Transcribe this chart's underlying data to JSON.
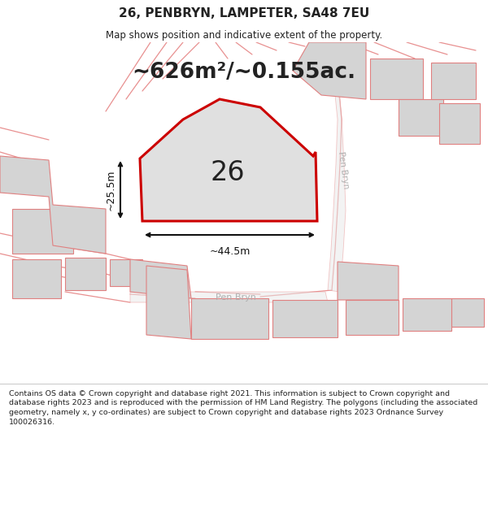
{
  "title": "26, PENBRYN, LAMPETER, SA48 7EU",
  "subtitle": "Map shows position and indicative extent of the property.",
  "area_text": "~626m²/~0.155ac.",
  "property_number": "26",
  "dim_width": "~44.5m",
  "dim_height": "~25.5m",
  "street_label_right": "Pen Bryn",
  "street_label_bottom": "Pen Bryn",
  "footer": "Contains OS data © Crown copyright and database right 2021. This information is subject to Crown copyright and database rights 2023 and is reproduced with the permission of HM Land Registry. The polygons (including the associated geometry, namely x, y co-ordinates) are subject to Crown copyright and database rights 2023 Ordnance Survey 100026316.",
  "map_bg": "#f0f0f0",
  "property_fill": "#e0e0e0",
  "property_outline": "#cc0000",
  "other_fill": "#d4d4d4",
  "other_outline": "#e08080",
  "text_color": "#222222",
  "dim_color": "#111111",
  "street_text_color": "#b0b0b0",
  "road_line_color": "#e89090"
}
